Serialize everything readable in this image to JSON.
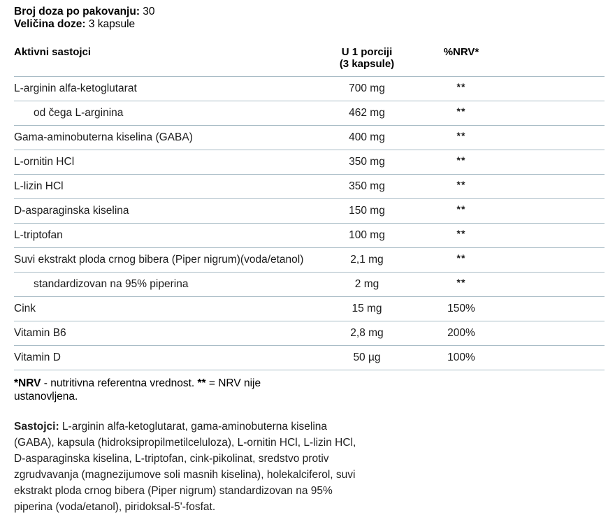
{
  "colors": {
    "divider": "#a9bcc6",
    "text": "#1b1b1b"
  },
  "serving_info": {
    "doses_label": "Broj doza po pakovanju:",
    "doses_value": "30",
    "size_label": "Veličina doze:",
    "size_value": "3 kapsule"
  },
  "table": {
    "columns": {
      "ingredients": "Aktivni sastojci",
      "per_serving_line1": "U 1 porciji",
      "per_serving_line2": "(3 kapsule)",
      "nrv": "%NRV*"
    },
    "rows": [
      {
        "name": "L-arginin alfa-ketoglutarat",
        "amount": "700 mg",
        "nrv": "**",
        "indent": false
      },
      {
        "name": "od čega L-arginina",
        "amount": "462 mg",
        "nrv": "**",
        "indent": true
      },
      {
        "name": "Gama-aminobuterna kiselina (GABA)",
        "amount": "400 mg",
        "nrv": "**",
        "indent": false
      },
      {
        "name": "L-ornitin HCl",
        "amount": "350 mg",
        "nrv": "**",
        "indent": false
      },
      {
        "name": "L-lizin HCl",
        "amount": "350 mg",
        "nrv": "**",
        "indent": false
      },
      {
        "name": "D-asparaginska kiselina",
        "amount": "150 mg",
        "nrv": "**",
        "indent": false
      },
      {
        "name": "L-triptofan",
        "amount": "100 mg",
        "nrv": "**",
        "indent": false
      },
      {
        "name": "Suvi ekstrakt ploda crnog bibera (Piper nigrum)(voda/etanol)",
        "amount": "2,1 mg",
        "nrv": "**",
        "indent": false
      },
      {
        "name": "standardizovan na 95% piperina",
        "amount": "2 mg",
        "nrv": "**",
        "indent": true
      },
      {
        "name": "Cink",
        "amount": "15 mg",
        "nrv": "150%",
        "indent": false
      },
      {
        "name": "Vitamin B6",
        "amount": "2,8 mg",
        "nrv": "200%",
        "indent": false
      },
      {
        "name": "Vitamin D",
        "amount": "50 µg",
        "nrv": "100%",
        "indent": false
      }
    ]
  },
  "footnote": {
    "nrv_label": "*NRV",
    "nrv_definition": " - nutritivna referentna vrednost. ",
    "asterisks": "**",
    "not_established": " = NRV nije ustanovljena."
  },
  "ingredients": {
    "label": "Sastojci:",
    "text": " L-arginin alfa-ketoglutarat, gama-aminobuterna kiselina (GABA), kapsula (hidroksipropilmetilceluloza), L-ornitin HCl, L-lizin HCl, D-asparaginska kiselina, L-triptofan, cink-pikolinat, sredstvo protiv zgrudvavanja (magnezijumove soli masnih kiselina), holekalciferol, suvi ekstrakt ploda crnog bibera (Piper nigrum) standardizovan na 95% piperina (voda/etanol), piridoksal-5'-fosfat."
  }
}
